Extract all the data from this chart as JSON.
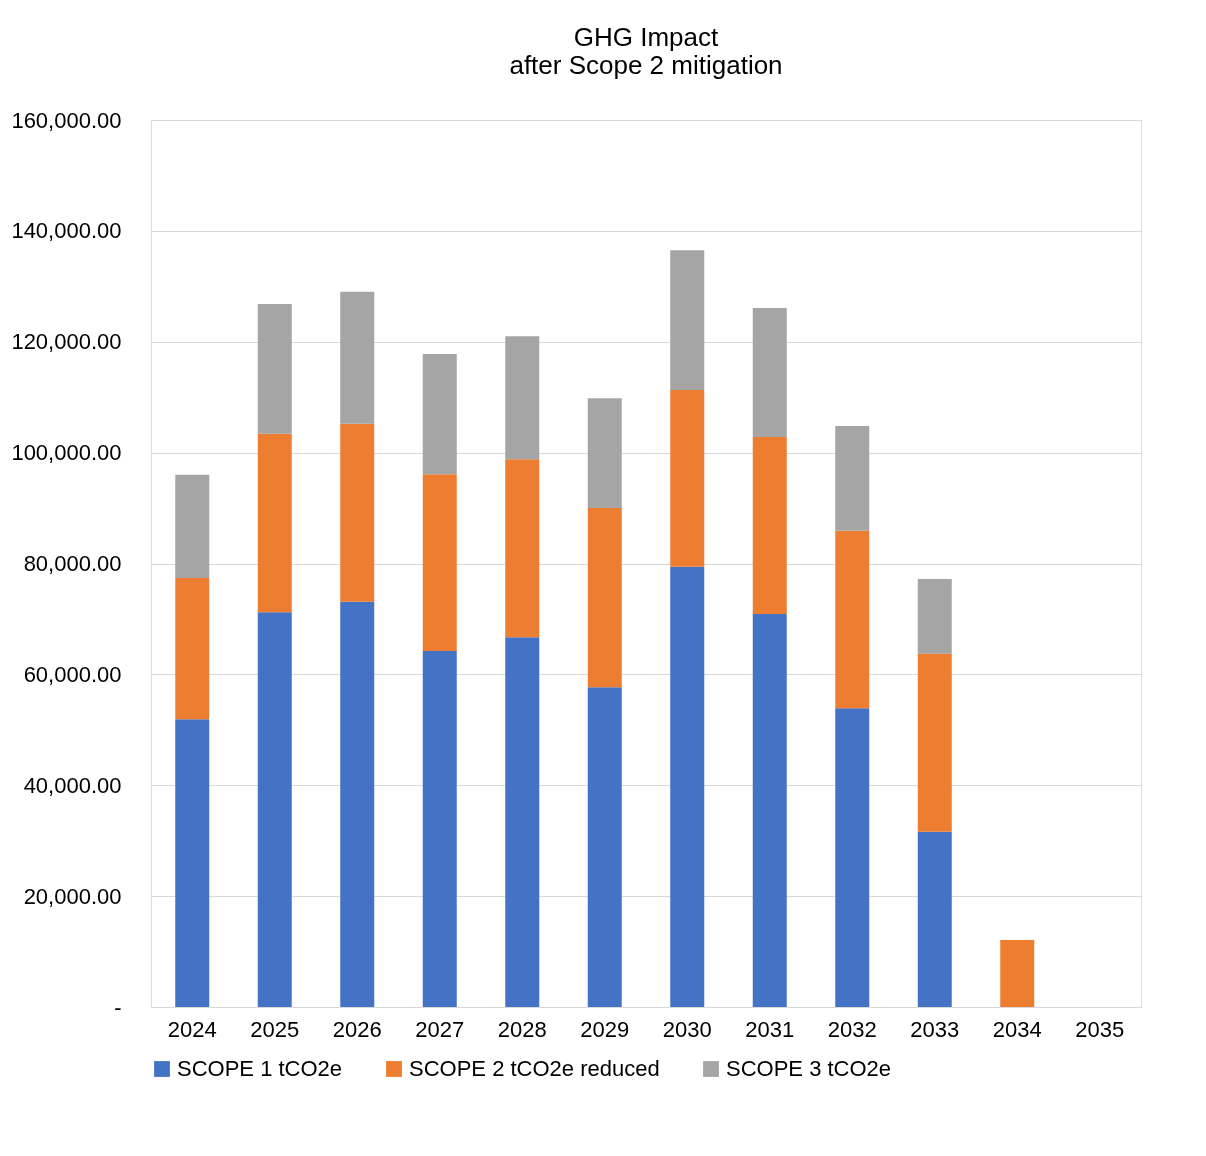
{
  "chart_data": {
    "type": "bar",
    "title": "GHG Impact\nafter Scope 2 mitigation",
    "stacked": true,
    "categories": [
      "2024",
      "2025",
      "2026",
      "2027",
      "2028",
      "2029",
      "2030",
      "2031",
      "2032",
      "2033",
      "2034",
      "2035"
    ],
    "series": [
      {
        "name": "SCOPE 1 tCO2e",
        "color": "#4472c4",
        "values": [
          51900,
          71200,
          73100,
          64200,
          66700,
          57700,
          79400,
          70900,
          53900,
          31600,
          null,
          null
        ]
      },
      {
        "name": "SCOPE 2 tCO2e reduced",
        "color": "#ed7d31",
        "values": [
          25500,
          32200,
          32100,
          31900,
          32100,
          32300,
          31900,
          31900,
          32000,
          32100,
          12100,
          null
        ]
      },
      {
        "name": "SCOPE 3 tCO2e",
        "color": "#a5a5a5",
        "values": [
          18600,
          23400,
          23800,
          21700,
          22200,
          19800,
          25200,
          23300,
          18900,
          13500,
          null,
          null
        ]
      }
    ],
    "ylim": [
      0,
      160000
    ],
    "yticks": [
      {
        "value": 0,
        "label": "-"
      },
      {
        "value": 20000,
        "label": "20,000.00"
      },
      {
        "value": 40000,
        "label": "40,000.00"
      },
      {
        "value": 60000,
        "label": "60,000.00"
      },
      {
        "value": 80000,
        "label": "80,000.00"
      },
      {
        "value": 100000,
        "label": "100,000.00"
      },
      {
        "value": 120000,
        "label": "120,000.00"
      },
      {
        "value": 140000,
        "label": "140,000.00"
      },
      {
        "value": 160000,
        "label": "160,000.00"
      }
    ],
    "grid": "y",
    "legend": "bottom"
  }
}
